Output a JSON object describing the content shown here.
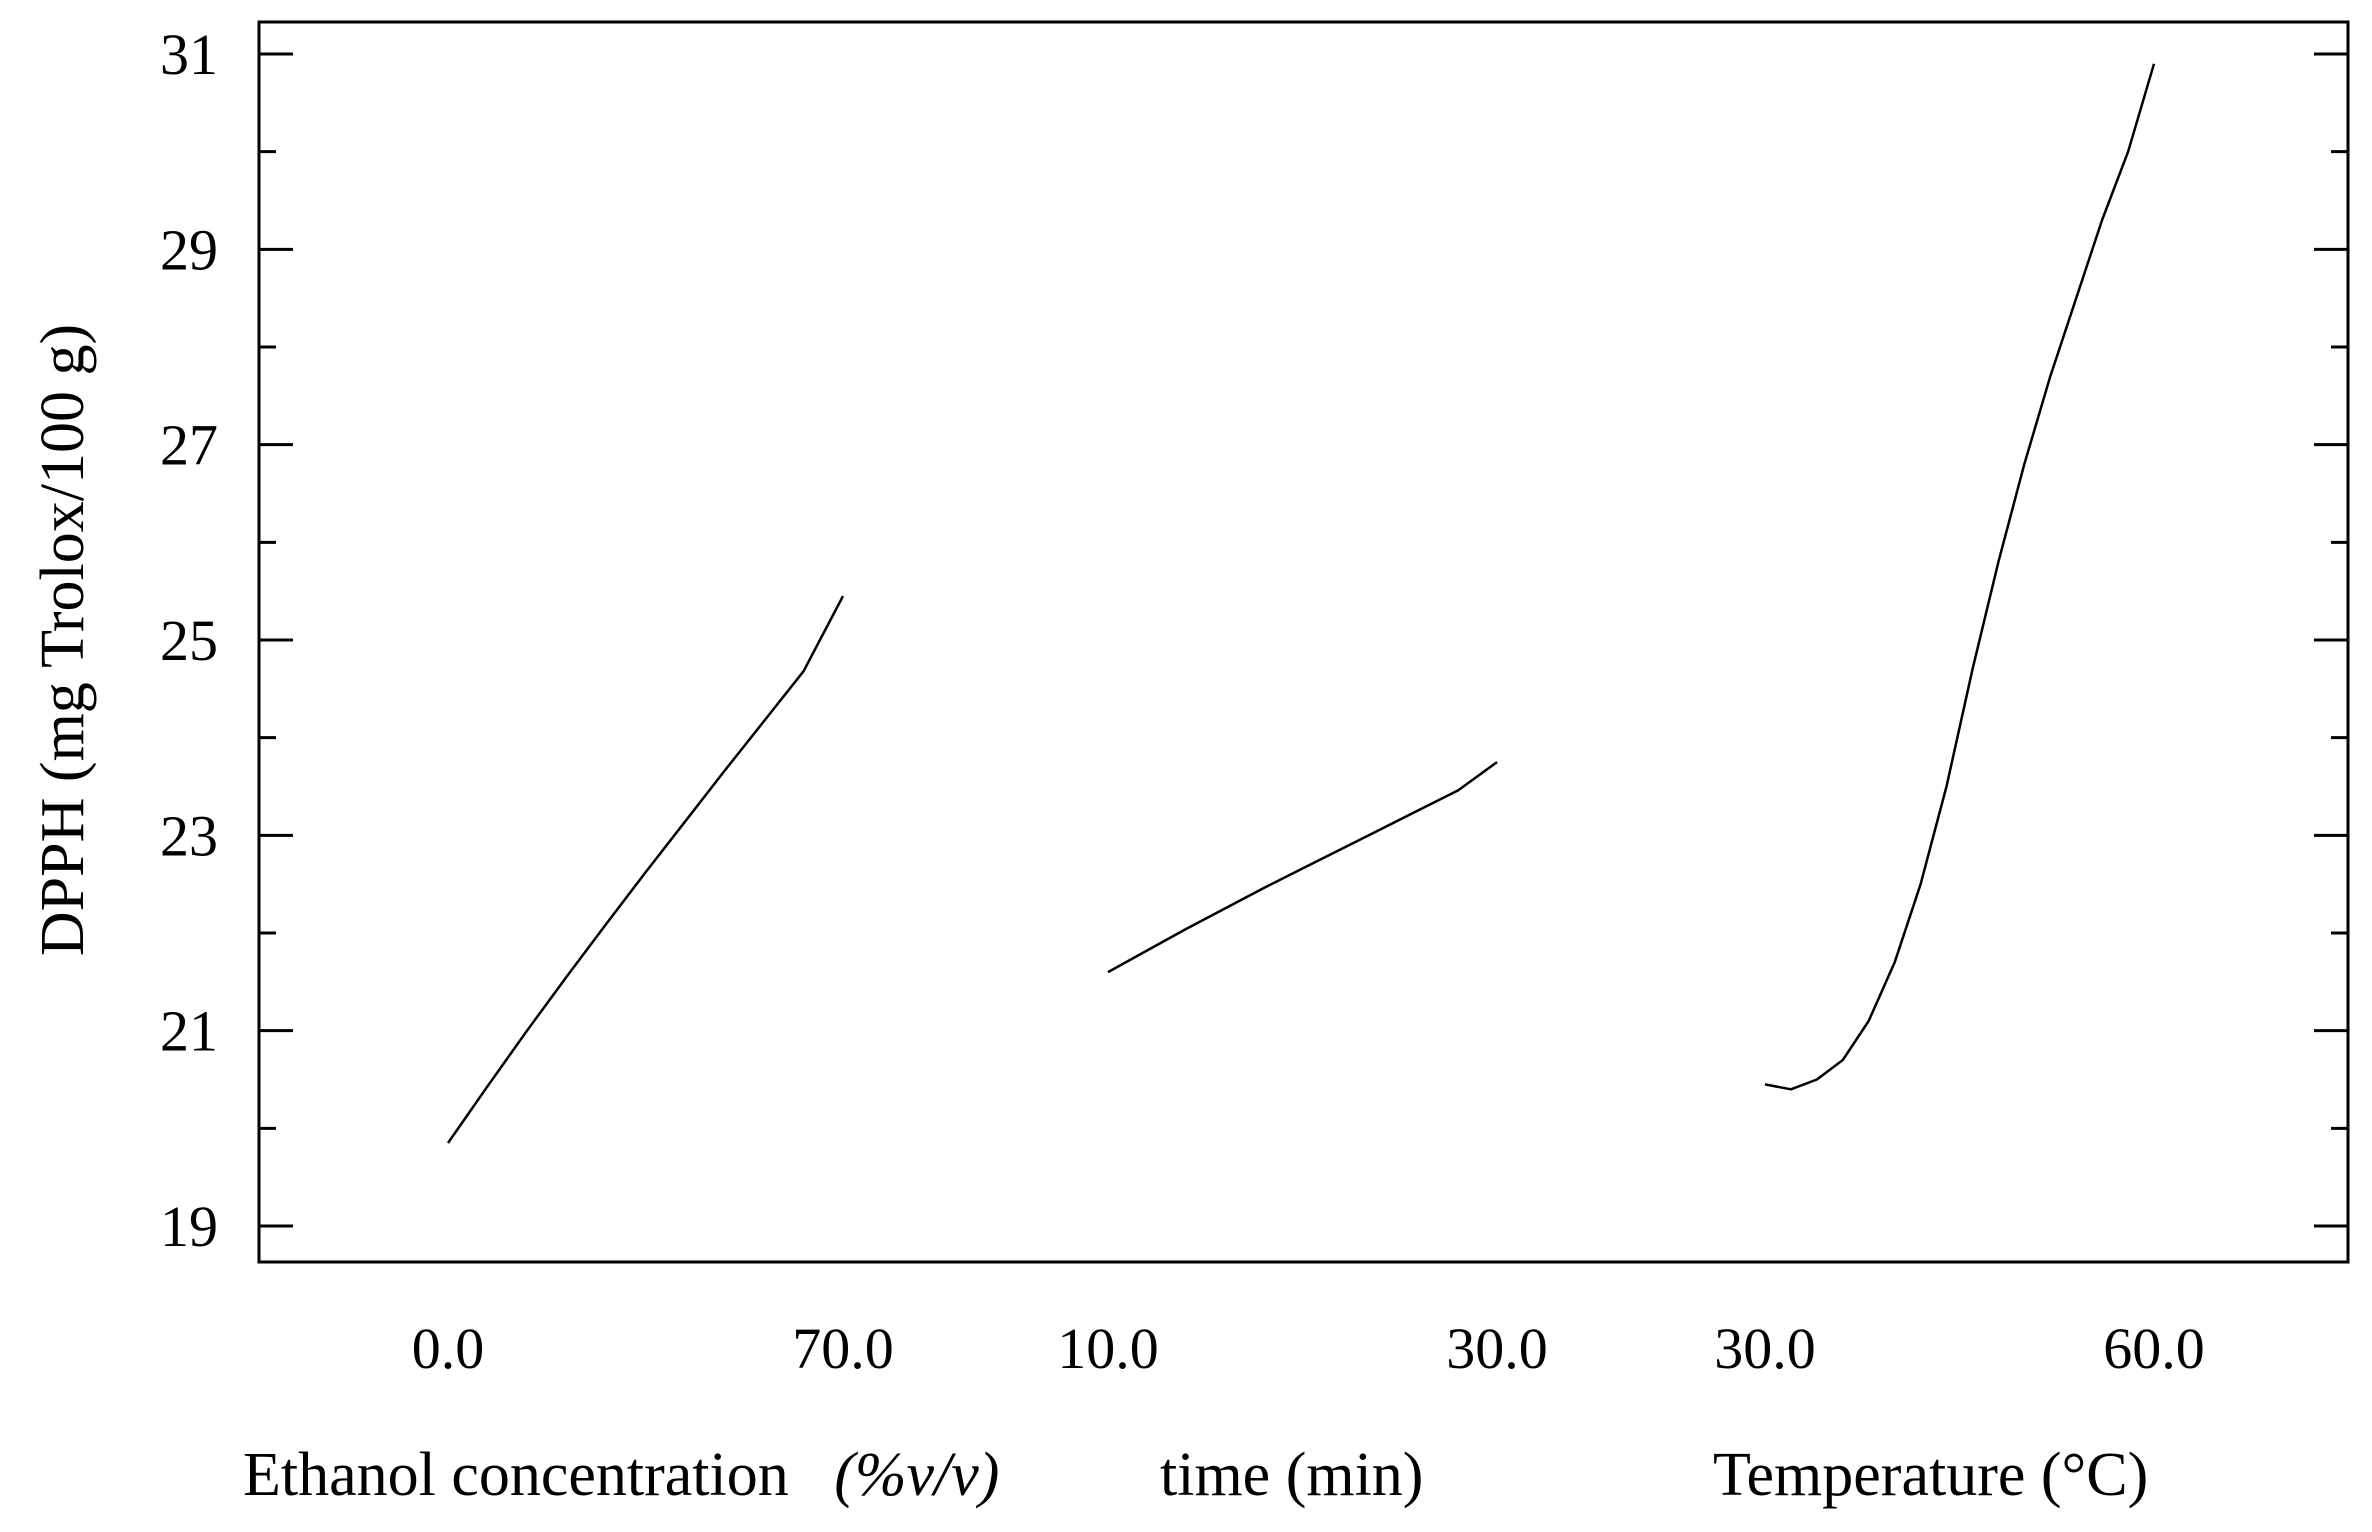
{
  "chart_data": {
    "type": "line",
    "title": "",
    "ylabel": "DPPH (mg Trolox/100 g)",
    "ylim": [
      18.6,
      31.3
    ],
    "yticks": [
      "19",
      "21",
      "23",
      "25",
      "27",
      "29",
      "31"
    ],
    "grid": false,
    "legend": "none",
    "panels": [
      {
        "name": "ethanol",
        "xlabel": "Ethanol concentration",
        "xlabel_unit": "(%v/v)",
        "xlim": [
          0.0,
          70.0
        ],
        "tick_labels": [
          "0.0",
          "70.0"
        ],
        "x": [
          0,
          7,
          14,
          21,
          28,
          35,
          42,
          49,
          56,
          63,
          70
        ],
        "y": [
          19.85,
          20.43,
          21.0,
          21.55,
          22.09,
          22.62,
          23.14,
          23.66,
          24.17,
          24.68,
          25.45
        ]
      },
      {
        "name": "time",
        "xlabel": "time (min)",
        "xlim": [
          10.0,
          30.0
        ],
        "tick_labels": [
          "10.0",
          "30.0"
        ],
        "x": [
          10,
          12,
          14,
          16,
          18,
          20,
          22,
          24,
          26,
          28,
          30
        ],
        "y": [
          21.6,
          21.82,
          22.04,
          22.25,
          22.46,
          22.66,
          22.86,
          23.06,
          23.26,
          23.46,
          23.75
        ]
      },
      {
        "name": "temperature",
        "xlabel": "Temperature (°C)",
        "xlim": [
          30.0,
          60.0
        ],
        "tick_labels": [
          "30.0",
          "60.0"
        ],
        "x": [
          30,
          32,
          34,
          36,
          38,
          40,
          42,
          44,
          46,
          48,
          50,
          52,
          54,
          56,
          58,
          60
        ],
        "y": [
          20.45,
          20.4,
          20.5,
          20.7,
          21.1,
          21.7,
          22.5,
          23.5,
          24.7,
          25.8,
          26.8,
          27.7,
          28.5,
          29.3,
          30.0,
          30.9
        ]
      }
    ]
  }
}
